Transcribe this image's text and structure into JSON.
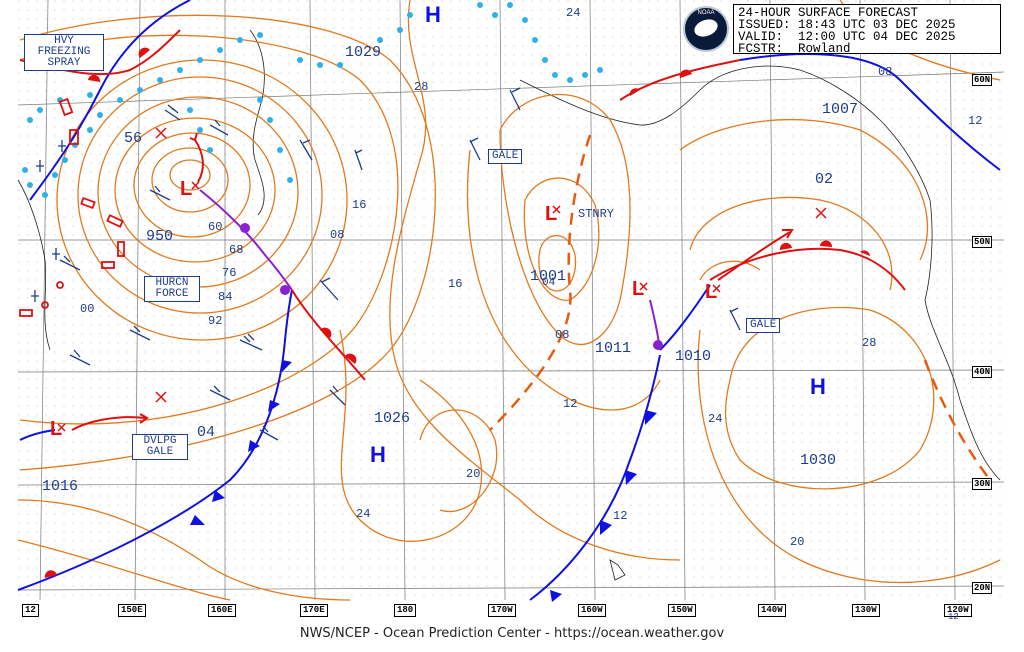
{
  "header": {
    "title": "24-HOUR SURFACE FORECAST",
    "issued": "ISSUED: 18:43 UTC 03 DEC 2025",
    "valid": "VALID:  12:00 UTC 04 DEC 2025",
    "forecaster": "FCSTR:  Rowland",
    "logo_text": "NOAA"
  },
  "footer": {
    "credit": "NWS/NCEP - Ocean Prediction Center - https://ocean.weather.gov"
  },
  "warnings": {
    "hvy_freezing_spray": [
      "HVY",
      "FREEZING",
      "SPRAY"
    ],
    "hurcn_force": [
      "HURCN",
      "FORCE"
    ],
    "dvlpg_gale": [
      "DVLPG",
      "GALE"
    ],
    "gale_1": "GALE",
    "gale_2": "GALE"
  },
  "labels": {
    "stnry": "STNRY",
    "p1029": "1029",
    "p1007": "1007",
    "p02": "02",
    "p56": "56",
    "p950": "950",
    "p1026": "1026",
    "p04": "04",
    "p1016": "1016",
    "p1011": "1011",
    "p1010": "1010",
    "p1030": "1030",
    "p1001": "1001",
    "p04b": "04"
  },
  "high_symbol": "H",
  "low_symbol": "L",
  "isobar_labels": [
    "24",
    "28",
    "16",
    "08",
    "60",
    "68",
    "76",
    "84",
    "92",
    "00",
    "16",
    "08",
    "12",
    "20",
    "24",
    "24",
    "20",
    "28",
    "12",
    "08",
    "12"
  ],
  "lat_labels": [
    "60N",
    "50N",
    "40N",
    "30N",
    "20N"
  ],
  "lon_labels": [
    "12",
    "150E",
    "160E",
    "170E",
    "180",
    "170W",
    "160W",
    "150W",
    "140W",
    "130W",
    "120W",
    "12"
  ],
  "colors": {
    "isobar": "#e07a1e",
    "cold_front": "#1010e0",
    "warm_front": "#e01010",
    "occluded": "#8a20d0",
    "ice_edge": "#30b0e8",
    "wind_barb": "#1e3c8c",
    "grid": "#7a7a7a",
    "land": "#202020"
  }
}
